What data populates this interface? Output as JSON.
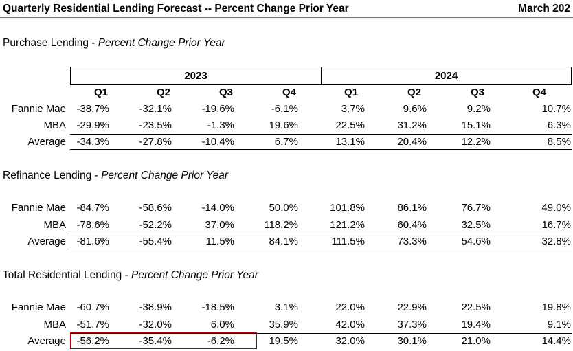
{
  "title": "Quarterly Residential Lending Forecast -- Percent Change Prior Year",
  "date": "March 202",
  "years": [
    "2023",
    "2024"
  ],
  "quarters": [
    "Q1",
    "Q2",
    "Q3",
    "Q4",
    "Q1",
    "Q2",
    "Q3",
    "Q4"
  ],
  "sections": [
    {
      "name": "Purchase Lending",
      "subtitle": "Percent Change Prior Year",
      "rows": [
        {
          "label": "Fannie Mae",
          "values": [
            "-38.7%",
            "-32.1%",
            "-19.6%",
            "-6.1%",
            "3.7%",
            "9.6%",
            "9.2%",
            "10.7%"
          ]
        },
        {
          "label": "MBA",
          "values": [
            "-29.9%",
            "-23.5%",
            "-1.3%",
            "19.6%",
            "22.5%",
            "31.2%",
            "15.1%",
            "6.3%"
          ]
        },
        {
          "label": "Average",
          "values": [
            "-34.3%",
            "-27.8%",
            "-10.4%",
            "6.7%",
            "13.1%",
            "20.4%",
            "12.2%",
            "8.5%"
          ]
        }
      ]
    },
    {
      "name": "Refinance Lending",
      "subtitle": "Percent Change Prior Year",
      "rows": [
        {
          "label": "Fannie Mae",
          "values": [
            "-84.7%",
            "-58.6%",
            "-14.0%",
            "50.0%",
            "101.8%",
            "86.1%",
            "76.7%",
            "49.0%"
          ]
        },
        {
          "label": "MBA",
          "values": [
            "-78.6%",
            "-52.2%",
            "37.0%",
            "118.2%",
            "121.2%",
            "60.4%",
            "32.5%",
            "16.7%"
          ]
        },
        {
          "label": "Average",
          "values": [
            "-81.6%",
            "-55.4%",
            "11.5%",
            "84.1%",
            "111.5%",
            "73.3%",
            "54.6%",
            "32.8%"
          ]
        }
      ]
    },
    {
      "name": "Total Residential Lending",
      "subtitle": "Percent Change Prior Year",
      "rows": [
        {
          "label": "Fannie Mae",
          "values": [
            "-60.7%",
            "-38.9%",
            "-18.5%",
            "3.1%",
            "22.0%",
            "22.9%",
            "22.5%",
            "19.8%"
          ]
        },
        {
          "label": "MBA",
          "values": [
            "-51.7%",
            "-32.0%",
            "6.0%",
            "35.9%",
            "42.0%",
            "37.3%",
            "19.4%",
            "9.1%"
          ]
        },
        {
          "label": "Average",
          "values": [
            "-56.2%",
            "-35.4%",
            "-6.2%",
            "19.5%",
            "32.0%",
            "30.1%",
            "21.0%",
            "14.4%"
          ]
        }
      ]
    }
  ]
}
